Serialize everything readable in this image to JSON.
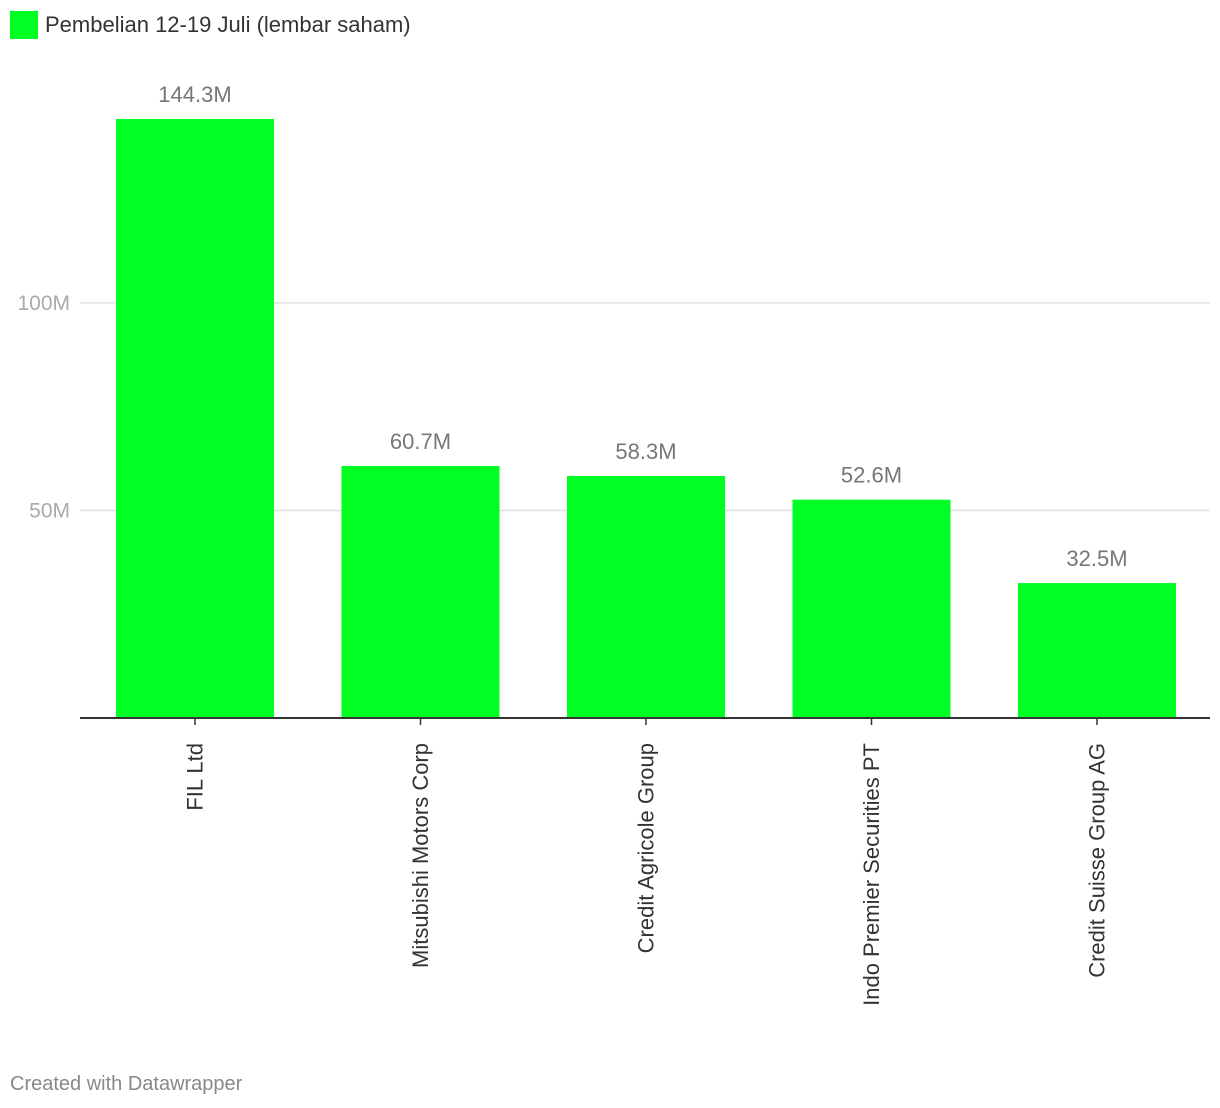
{
  "legend": {
    "label": "Pembelian 12-19 Juli (lembar saham)",
    "color": "#00ff22"
  },
  "footer": {
    "credit": "Created with Datawrapper"
  },
  "chart_data": {
    "type": "bar",
    "title": "",
    "xlabel": "",
    "ylabel": "",
    "categories": [
      "FIL Ltd",
      "Mitsubishi Motors Corp",
      "Credit Agricole Group",
      "Indo Premier Securities PT",
      "Credit Suisse Group AG"
    ],
    "series": [
      {
        "name": "Pembelian 12-19 Juli (lembar saham)",
        "values": [
          144.3,
          60.7,
          58.3,
          52.6,
          32.5
        ],
        "value_labels": [
          "144.3M",
          "60.7M",
          "58.3M",
          "52.6M",
          "32.5M"
        ]
      }
    ],
    "yunit": "M",
    "ylim": [
      0,
      144.3
    ],
    "yticks": [
      {
        "value": 50,
        "label": "50M"
      },
      {
        "value": 100,
        "label": "100M"
      }
    ],
    "grid": true,
    "legend_position": "top-left",
    "colors": {
      "bar": "#00ff22",
      "grid": "#e0e0e0",
      "axis": "#333333"
    }
  }
}
